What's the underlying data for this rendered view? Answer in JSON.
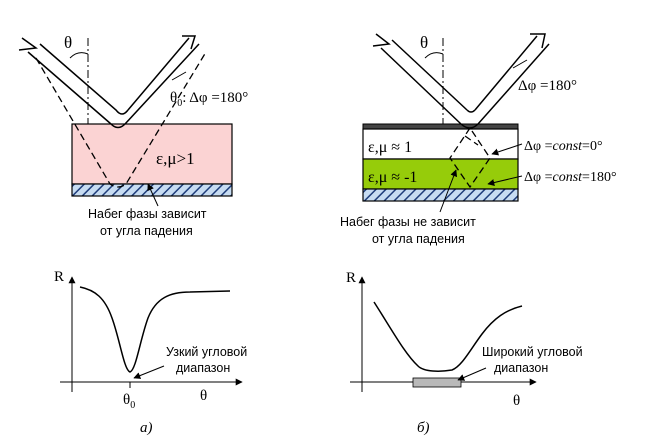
{
  "colors": {
    "pink_layer": "#fbd3d3",
    "green_layer": "#96cc0a",
    "hatch_fill": "#c7dcf2",
    "bandwidth_bar": "#b9b9b9"
  },
  "panel_a": {
    "theta": "θ",
    "theta0_label": "θ",
    "theta0_sub": "0",
    "phase_label": ": Δφ =180°",
    "medium_label": "ε,μ>1",
    "note_line1": "Набег фазы зависит",
    "note_line2": "от угла падения",
    "graph": {
      "axis_y": "R",
      "axis_x": "θ",
      "tick_label": "θ",
      "tick_sub": "0",
      "note_line1": "Узкий угловой",
      "note_line2": "диапазон"
    },
    "caption": "а)"
  },
  "panel_b": {
    "theta": "θ",
    "phase_label": "Δφ =180°",
    "layer1_label": "ε,μ ≈ 1",
    "layer2_label": "ε,μ ≈ -1",
    "phase1_prefix": "Δφ =",
    "phase1_italic": "const",
    "phase1_suffix": "=0°",
    "phase2_prefix": "Δφ =",
    "phase2_italic": "const",
    "phase2_suffix": "=180°",
    "note_line1": "Набег фазы не зависит",
    "note_line2": "от угла падения",
    "graph": {
      "axis_y": "R",
      "axis_x": "θ",
      "note_line1": "Широкий угловой",
      "note_line2": "диапазон"
    },
    "caption": "б)"
  }
}
